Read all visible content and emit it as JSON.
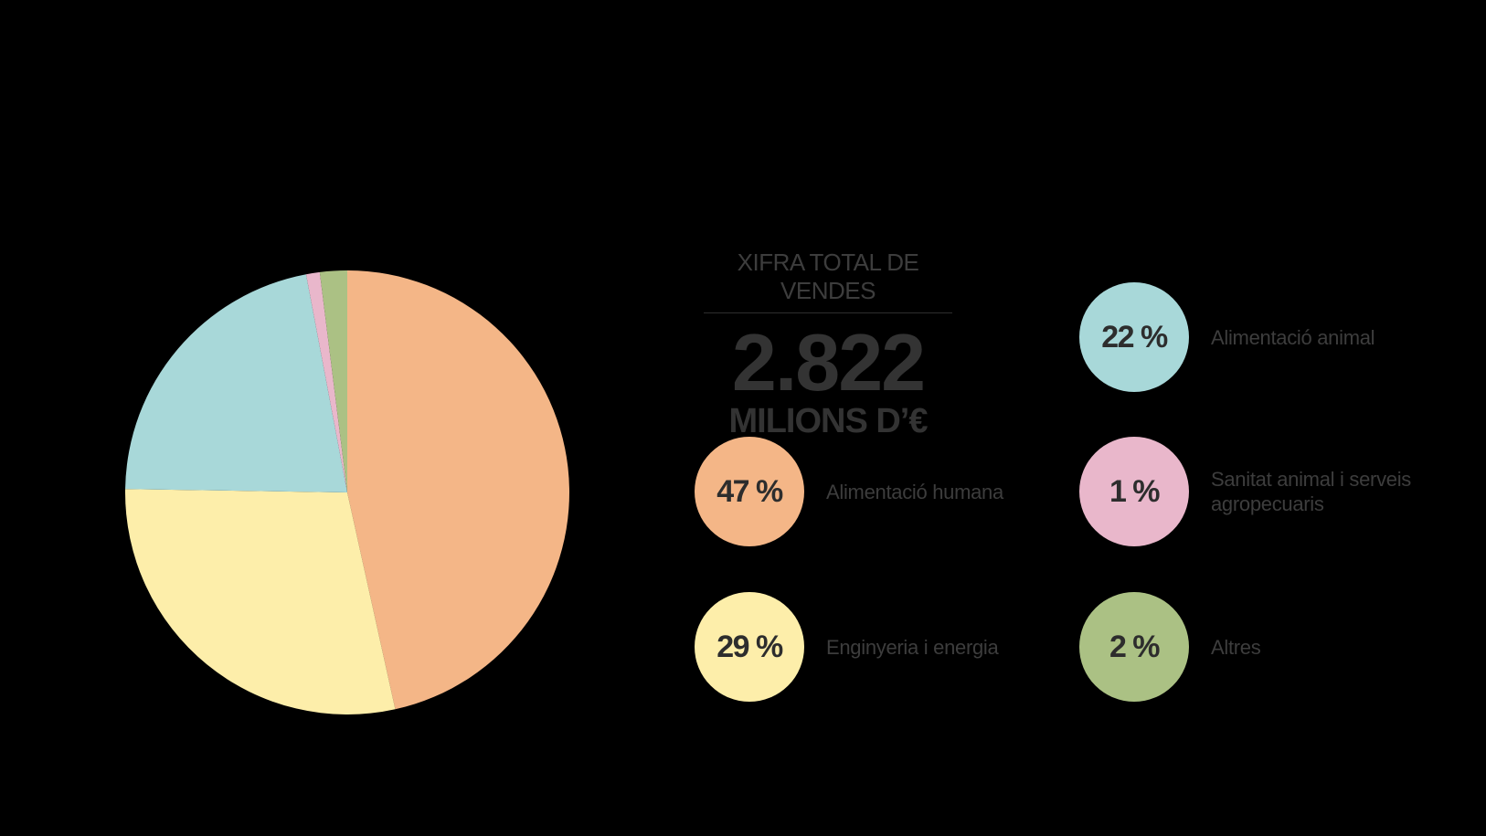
{
  "summary": {
    "label": "XIFRA TOTAL DE VENDES",
    "value": "2.822",
    "unit": "MILIONS D’€"
  },
  "legend": [
    {
      "pct": "47 %",
      "label": "Alimentació humana",
      "color": "#f4b687"
    },
    {
      "pct": "29 %",
      "label": "Enginyeria i energia",
      "color": "#fdeeaa"
    },
    {
      "pct": "22 %",
      "label": "Alimentació animal",
      "color": "#a8d8d9"
    },
    {
      "pct": "1 %",
      "label": "Sanitat animal i serveis agropecuaris",
      "color": "#e9b7cb"
    },
    {
      "pct": "2 %",
      "label": "Altres",
      "color": "#abc184"
    }
  ],
  "chart_data": {
    "type": "pie",
    "categories": [
      "Alimentació humana",
      "Enginyeria i energia",
      "Alimentació animal",
      "Sanitat animal i serveis agropecuaris",
      "Altres"
    ],
    "values": [
      47,
      29,
      22,
      1,
      2
    ],
    "colors": [
      "#f4b687",
      "#fdeeaa",
      "#a8d8d9",
      "#e9b7cb",
      "#abc184"
    ],
    "unit": "%",
    "start": "12 o'clock",
    "direction": "clockwise"
  }
}
